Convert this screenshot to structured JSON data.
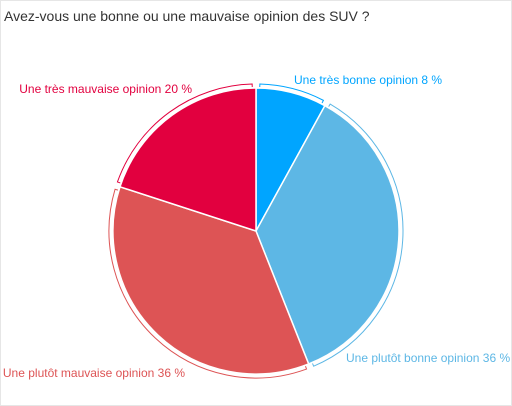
{
  "chart_data": {
    "type": "pie",
    "title": "Avez-vous une bonne ou une mauvaise opinion des SUV ?",
    "unit": "%",
    "slices": [
      {
        "label": "Une très bonne opinion",
        "value": 8,
        "value_label": "8 %",
        "color": "#00a5ff"
      },
      {
        "label": "Une plutôt bonne opinion",
        "value": 36,
        "value_label": "36 %",
        "color": "#5db7e5"
      },
      {
        "label": "Une plutôt mauvaise opinion",
        "value": 36,
        "value_label": "36 %",
        "color": "#dd5455"
      },
      {
        "label": "Une très mauvaise opinion",
        "value": 20,
        "value_label": "20 %",
        "color": "#e2003f"
      }
    ]
  }
}
